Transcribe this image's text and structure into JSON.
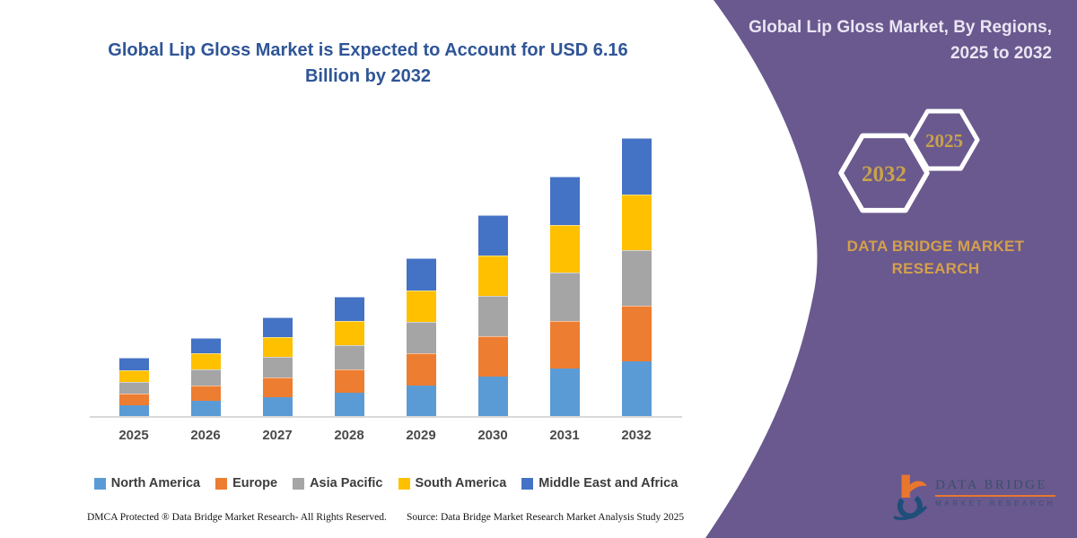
{
  "left_panel": {
    "title_lines": [
      "Global Lip Gloss Market is Expected to Account for USD 6.16",
      "Billion by 2032"
    ],
    "footer_left": "DMCA Protected ® Data Bridge Market Research-  All Rights Reserved.",
    "footer_source": "Source: Data Bridge Market Research  Market Analysis Study 2025",
    "title_color": "#2F5597"
  },
  "chart_data": {
    "type": "bar",
    "stacked": true,
    "unit": "USD billion",
    "categories": [
      "2025",
      "2026",
      "2027",
      "2028",
      "2029",
      "2030",
      "2031",
      "2032"
    ],
    "series": [
      {
        "name": "North America",
        "color": "#5B9BD5",
        "values": [
          0.26,
          0.35,
          0.44,
          0.53,
          0.7,
          0.89,
          1.06,
          1.23
        ]
      },
      {
        "name": "Europe",
        "color": "#ED7D31",
        "values": [
          0.26,
          0.35,
          0.44,
          0.53,
          0.7,
          0.89,
          1.06,
          1.23
        ]
      },
      {
        "name": "Asia Pacific",
        "color": "#A5A5A5",
        "values": [
          0.26,
          0.35,
          0.44,
          0.53,
          0.7,
          0.89,
          1.06,
          1.23
        ]
      },
      {
        "name": "South America",
        "color": "#FFC000",
        "values": [
          0.26,
          0.35,
          0.44,
          0.53,
          0.7,
          0.89,
          1.06,
          1.23
        ]
      },
      {
        "name": "Middle East and Africa",
        "color": "#4472C4",
        "values": [
          0.26,
          0.35,
          0.44,
          0.53,
          0.7,
          0.89,
          1.06,
          1.24
        ]
      }
    ],
    "totals": [
      1.3,
      1.75,
      2.2,
      2.65,
      3.5,
      4.45,
      5.3,
      6.16
    ],
    "ylim": [
      0,
      6.6
    ],
    "grid": false,
    "y_axis_labels": false,
    "legend_position": "bottom"
  },
  "right_panel": {
    "background_color": "#69598E",
    "header_lines": [
      "Global Lip Gloss Market, By Regions,",
      "2025 to 2032"
    ],
    "hexagon_big_label": "2032",
    "hexagon_small_label": "2025",
    "brand_text": "DATA BRIDGE MARKET RESEARCH",
    "gold_color": "#D5A04A",
    "logo": {
      "line1": "DATA BRIDGE",
      "line2": "MARKET RESEARCH",
      "orange": "#E8762D",
      "navy": "#1F4E79"
    }
  }
}
